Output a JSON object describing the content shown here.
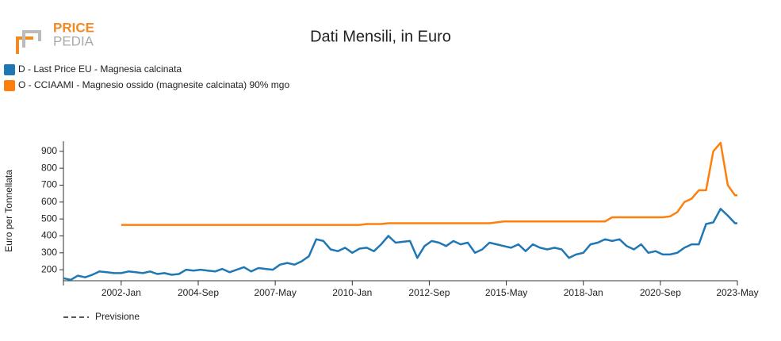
{
  "logo": {
    "top": "PRICE",
    "bottom": "PEDIA"
  },
  "forecast_label": "Previsione",
  "chart_data": {
    "type": "line",
    "title": "Dati Mensili, in Euro",
    "y_label": "Euro per Tonnellata",
    "legend": "top-left",
    "grid": false,
    "x": [
      "2000-Jan",
      "2000-Apr",
      "2000-Jul",
      "2000-Oct",
      "2001-Jan",
      "2001-Apr",
      "2001-Jul",
      "2001-Oct",
      "2002-Jan",
      "2002-Apr",
      "2002-Jul",
      "2002-Oct",
      "2003-Jan",
      "2003-Apr",
      "2003-Jul",
      "2003-Oct",
      "2004-Jan",
      "2004-Apr",
      "2004-Jul",
      "2004-Oct",
      "2005-Jan",
      "2005-Apr",
      "2005-Jul",
      "2005-Oct",
      "2006-Jan",
      "2006-Apr",
      "2006-Jul",
      "2006-Oct",
      "2007-Jan",
      "2007-Apr",
      "2007-Jul",
      "2007-Oct",
      "2008-Jan",
      "2008-Apr",
      "2008-Jul",
      "2008-Oct",
      "2009-Jan",
      "2009-Apr",
      "2009-Jul",
      "2009-Oct",
      "2010-Jan",
      "2010-Apr",
      "2010-Jul",
      "2010-Oct",
      "2011-Jan",
      "2011-Apr",
      "2011-Jul",
      "2011-Oct",
      "2012-Jan",
      "2012-Apr",
      "2012-Jul",
      "2012-Oct",
      "2013-Jan",
      "2013-Apr",
      "2013-Jul",
      "2013-Oct",
      "2014-Jan",
      "2014-Apr",
      "2014-Jul",
      "2014-Oct",
      "2015-Jan",
      "2015-Apr",
      "2015-Jul",
      "2015-Oct",
      "2016-Jan",
      "2016-Apr",
      "2016-Jul",
      "2016-Oct",
      "2017-Jan",
      "2017-Apr",
      "2017-Jul",
      "2017-Oct",
      "2018-Jan",
      "2018-Apr",
      "2018-Jul",
      "2018-Oct",
      "2019-Jan",
      "2019-Apr",
      "2019-Jul",
      "2019-Oct",
      "2020-Jan",
      "2020-Apr",
      "2020-Jul",
      "2020-Oct",
      "2021-Jan",
      "2021-Apr",
      "2021-Jul",
      "2021-Oct",
      "2022-Jan",
      "2022-Apr",
      "2022-Jul",
      "2022-Oct",
      "2023-Jan",
      "2023-Apr",
      "2023-May"
    ],
    "xlim": [
      "2000-Jan",
      "2023-May"
    ],
    "xticks": [
      "2002-Jan",
      "2004-Sep",
      "2007-May",
      "2010-Jan",
      "2012-Sep",
      "2015-May",
      "2018-Jan",
      "2020-Sep",
      "2023-May"
    ],
    "ylim": [
      135,
      960
    ],
    "yticks": [
      200,
      300,
      400,
      500,
      600,
      700,
      800,
      900
    ],
    "series": [
      {
        "name": "D - Last Price EU - Magnesia calcinata",
        "color": "#1f77b4",
        "values": [
          150,
          140,
          165,
          155,
          170,
          190,
          185,
          180,
          180,
          190,
          185,
          180,
          190,
          175,
          180,
          170,
          175,
          200,
          195,
          200,
          195,
          190,
          205,
          185,
          200,
          215,
          190,
          210,
          205,
          200,
          230,
          240,
          230,
          250,
          280,
          380,
          370,
          320,
          310,
          330,
          300,
          325,
          330,
          310,
          350,
          400,
          360,
          365,
          370,
          270,
          340,
          370,
          360,
          340,
          370,
          350,
          360,
          300,
          320,
          360,
          350,
          340,
          330,
          350,
          310,
          350,
          330,
          320,
          330,
          320,
          270,
          290,
          300,
          350,
          360,
          380,
          370,
          380,
          340,
          320,
          350,
          300,
          310,
          290,
          290,
          300,
          330,
          350,
          350,
          470,
          480,
          560,
          520,
          475,
          475
        ]
      },
      {
        "name": "O - CCIAAMI - Magnesio ossido (magnesite calcinata) 90% mgo",
        "color": "#ff7f0e",
        "values": [
          null,
          null,
          null,
          null,
          null,
          null,
          null,
          null,
          465,
          465,
          465,
          465,
          465,
          465,
          465,
          465,
          465,
          465,
          465,
          465,
          465,
          465,
          465,
          465,
          465,
          465,
          465,
          465,
          465,
          465,
          465,
          465,
          465,
          465,
          465,
          465,
          465,
          465,
          465,
          465,
          465,
          465,
          470,
          470,
          470,
          475,
          475,
          475,
          475,
          475,
          475,
          475,
          475,
          475,
          475,
          475,
          475,
          475,
          475,
          475,
          480,
          485,
          485,
          485,
          485,
          485,
          485,
          485,
          485,
          485,
          485,
          485,
          485,
          485,
          485,
          485,
          510,
          510,
          510,
          510,
          510,
          510,
          510,
          510,
          515,
          540,
          600,
          620,
          670,
          670,
          900,
          950,
          700,
          640,
          640
        ]
      }
    ]
  }
}
